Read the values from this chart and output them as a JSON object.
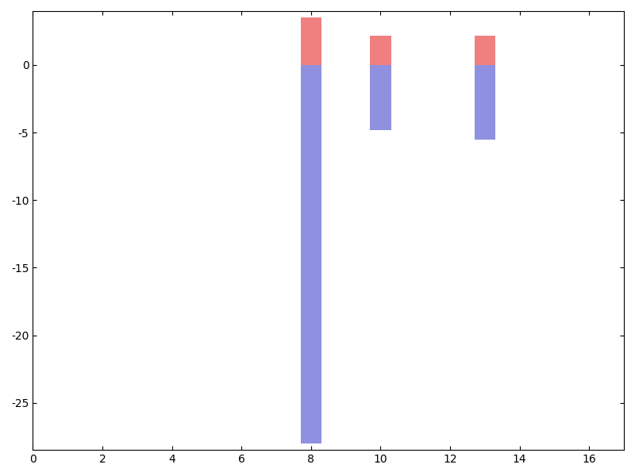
{
  "bars": [
    {
      "x": 8,
      "positive": 3.5,
      "negative": -28.0
    },
    {
      "x": 10,
      "positive": 2.2,
      "negative": -4.8
    },
    {
      "x": 13,
      "positive": 2.2,
      "negative": -5.5
    }
  ],
  "bar_width": 0.6,
  "positive_color": "#f08080",
  "negative_color": "#9090e0",
  "xlim": [
    0,
    17
  ],
  "ylim": [
    -28.5,
    4.0
  ],
  "background_color": "#ffffff",
  "figure_color": "#ffffff",
  "xticks": [
    0,
    2,
    4,
    6,
    8,
    10,
    12,
    14,
    16
  ],
  "yticks": [
    0,
    -5,
    -10,
    -15,
    -20,
    -25
  ]
}
